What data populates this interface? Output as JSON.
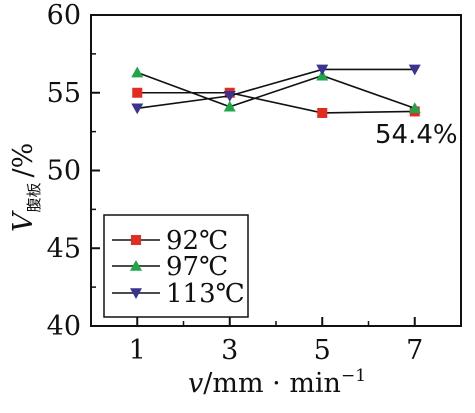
{
  "chart_data": {
    "type": "line",
    "x": [
      1,
      3,
      5,
      7
    ],
    "xlabel_var": "v",
    "xlabel_unit": "/mm · min",
    "xlabel_sup": "−1",
    "ylabel_var": "V",
    "ylabel_sub": "腹板",
    "ylabel_unit": "/%",
    "xlim": [
      0,
      8
    ],
    "ylim": [
      40,
      60
    ],
    "xticks": [
      "1",
      "3",
      "5",
      "7"
    ],
    "yticks": [
      "40",
      "45",
      "50",
      "55",
      "60"
    ],
    "grid": false,
    "legend_position": "bottom-left",
    "annotation": "54.4%",
    "series": [
      {
        "name": "92℃",
        "marker": "square",
        "color": "#e32b20",
        "values": [
          55.0,
          55.0,
          53.7,
          53.8
        ]
      },
      {
        "name": "97℃",
        "marker": "triangle-up",
        "color": "#1fa54a",
        "values": [
          56.3,
          54.1,
          56.1,
          54.0
        ]
      },
      {
        "name": "113℃",
        "marker": "triangle-down",
        "color": "#3a3391",
        "values": [
          54.0,
          54.8,
          56.5,
          56.5
        ]
      }
    ]
  }
}
